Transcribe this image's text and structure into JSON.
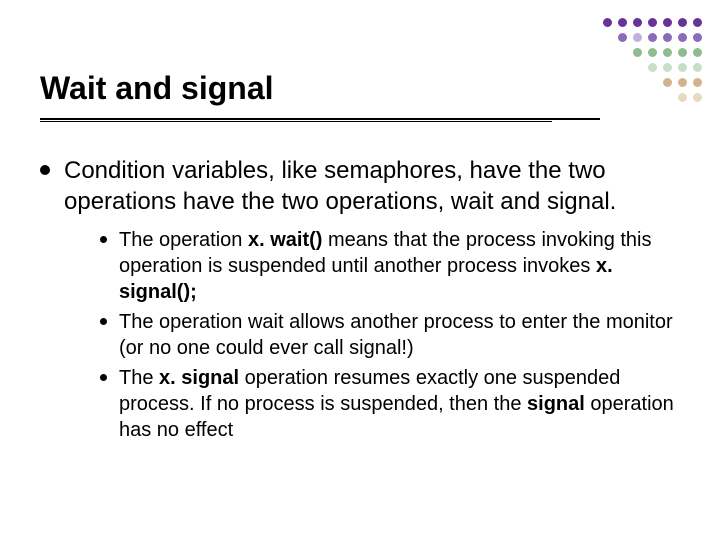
{
  "title": "Wait and signal",
  "decor": {
    "rows": [
      [
        "#663399",
        "#663399",
        "#663399",
        "#663399",
        "#663399",
        "#663399",
        "#663399"
      ],
      [
        "#8a6bb8",
        "#c4b0dd",
        "#8a6bb8",
        "#8a6bb8",
        "#8a6bb8",
        "#8a6bb8"
      ],
      [
        "#8fbc8f",
        "#8fbc8f",
        "#8fbc8f",
        "#8fbc8f",
        "#8fbc8f"
      ],
      [
        "#c7dec7",
        "#c7dec7",
        "#c7dec7",
        "#c7dec7"
      ],
      [
        "#d2b48c",
        "#d2b48c",
        "#d2b48c"
      ],
      [
        "#e8d9c3",
        "#e8d9c3"
      ]
    ],
    "dot_size": 9,
    "gap": 6
  },
  "main_bullet": "Condition variables, like semaphores, have the two operations have the two operations, wait and signal.",
  "sub_bullets": [
    {
      "pre": "The operation ",
      "b1": "x. wait()",
      "mid": " means that the process invoking this operation is suspended until another process invokes ",
      "b2": "x. signal();",
      "post": ""
    },
    {
      "pre": "The operation wait allows another process to enter the monitor (or no one could ever call signal!)",
      "b1": "",
      "mid": "",
      "b2": "",
      "post": ""
    },
    {
      "pre": "The ",
      "b1": "x. signal",
      "mid": " operation resumes exactly one suspended process.  If no process is suspended, then the ",
      "b2": "signal",
      "post": " operation has no effect"
    }
  ],
  "fontsize_title": 32,
  "fontsize_l1": 24,
  "fontsize_l2": 20,
  "text_color": "#000000",
  "background_color": "#ffffff"
}
